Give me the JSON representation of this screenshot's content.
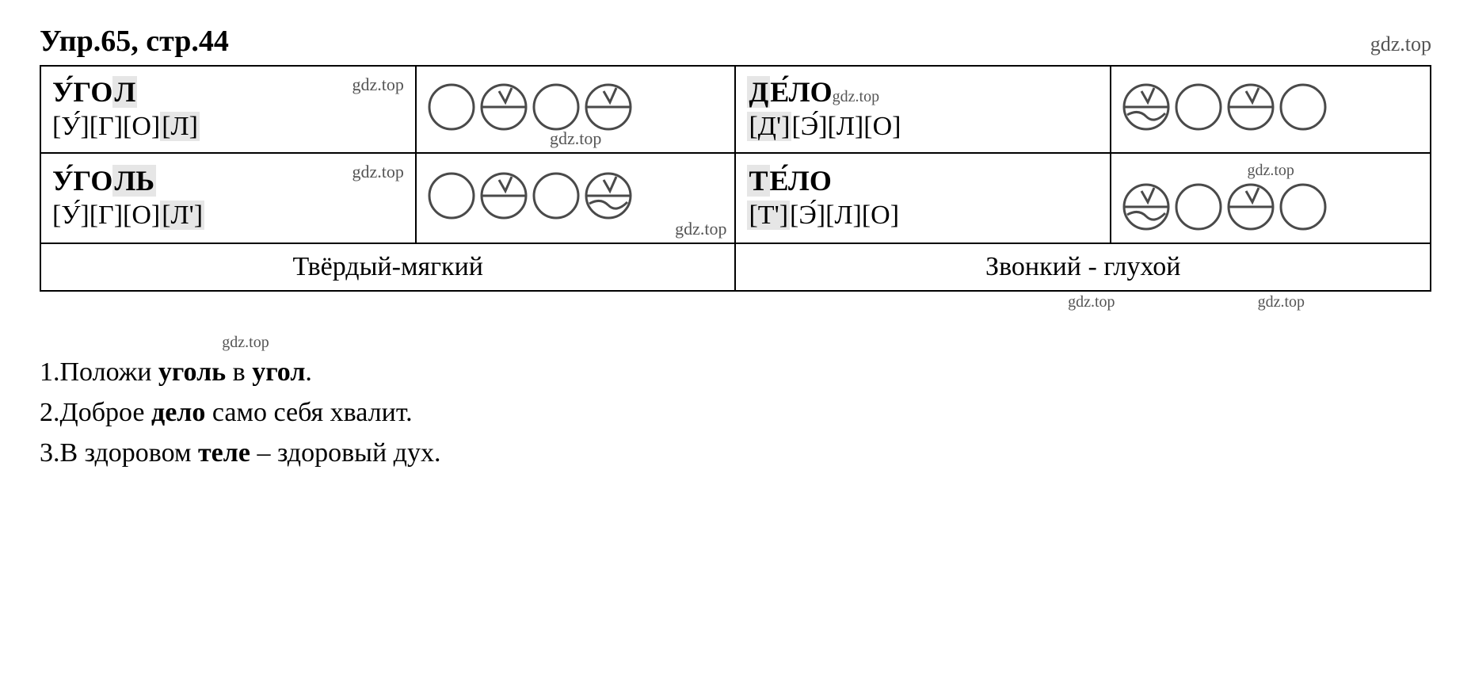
{
  "header": {
    "title": "Упр.65, стр.44",
    "watermark": "gdz.top"
  },
  "circle_style": {
    "stroke": "#4a4a4a",
    "stroke_width": 3,
    "radius": 28,
    "size": 60
  },
  "table": {
    "rows": [
      {
        "left": {
          "word_html": "У́ГО<span class='hl'>Л</span>",
          "sounds_html": "[У́][Г][О]<span class='hl'>[Л]</span>",
          "wm": "gdz.top",
          "circles": [
            "empty",
            "hard",
            "empty",
            "hard"
          ],
          "circles_wm": "gdz.top",
          "circles_wm_pos": "bottom"
        },
        "right": {
          "word_html": "<span class='hl'>Д</span>Е́ЛО",
          "word_wm": "gdz.top",
          "sounds_html": "<span class='hl'>[Д']</span>[Э́][Л][О]",
          "circles": [
            "soft",
            "empty",
            "hard",
            "empty"
          ]
        }
      },
      {
        "left": {
          "word_html": "У́ГО<span class='hl'>ЛЬ</span>",
          "sounds_html": "[У́][Г][О]<span class='hl'>[Л']</span>",
          "wm": "gdz.top",
          "circles": [
            "empty",
            "hard",
            "empty",
            "soft"
          ],
          "circles_wm": "gdz.top",
          "circles_wm_pos": "bottom-right"
        },
        "right": {
          "word_html": "<span class='hl'>Т</span>Е́ЛО",
          "sounds_html": "<span class='hl'>[Т']</span>[Э́][Л][О]",
          "top_wm": "gdz.top",
          "circles": [
            "soft",
            "empty",
            "hard",
            "empty"
          ]
        }
      }
    ],
    "labels": {
      "left": "Твёрдый-мягкий",
      "right": "Звонкий - глухой"
    }
  },
  "footer_wm": {
    "a": "gdz.top",
    "b": "gdz.top"
  },
  "sentences_wm": "gdz.top",
  "sentences": [
    {
      "num": "1.",
      "parts": [
        "Положи ",
        {
          "b": "уголь"
        },
        " в ",
        {
          "b": "угол"
        },
        "."
      ]
    },
    {
      "num": "2.",
      "parts": [
        "Доброе ",
        {
          "b": "дело"
        },
        " само себя хвалит."
      ]
    },
    {
      "num": "3.",
      "parts": [
        "В здоровом ",
        {
          "b": "теле"
        },
        " – здоровый дух."
      ]
    }
  ]
}
